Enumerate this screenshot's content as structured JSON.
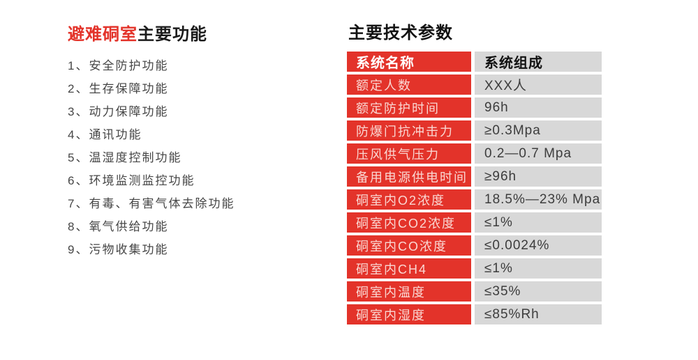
{
  "functions": {
    "title_red": "避难硐室",
    "title_black": "主要功能",
    "items": [
      "1、安全防护功能",
      "2、生存保障功能",
      "3、动力保障功能",
      "4、通讯功能",
      "5、温湿度控制功能",
      "6、环境监测监控功能",
      "7、有毒、有害气体去除功能",
      "8、氧气供给功能",
      "9、污物收集功能"
    ]
  },
  "parameters": {
    "title": "主要技术参数",
    "header": {
      "name": "系统名称",
      "value": "系统组成"
    },
    "rows": [
      {
        "name": "额定人数",
        "value": "XXX人"
      },
      {
        "name": "额定防护时间",
        "value": "96h"
      },
      {
        "name": "防爆门抗冲击力",
        "value": "≥0.3Mpa"
      },
      {
        "name": "压风供气压力",
        "value": "0.2—0.7 Mpa"
      },
      {
        "name": "备用电源供电时间",
        "value": "≥96h"
      },
      {
        "name": "硐室内O2浓度",
        "value": "18.5%—23% Mpa"
      },
      {
        "name": "硐室内CO2浓度",
        "value": "≤1%"
      },
      {
        "name": "硐室内CO浓度",
        "value": "≤0.0024%"
      },
      {
        "name": "硐室内CH4",
        "value": "≤1%"
      },
      {
        "name": "硐室内温度",
        "value": "≤35%"
      },
      {
        "name": "硐室内湿度",
        "value": "≤85%Rh"
      }
    ]
  },
  "colors": {
    "accent_red": "#e3332a",
    "cell_gray": "#d8d8d8",
    "label_pink": "#fad7d2"
  }
}
